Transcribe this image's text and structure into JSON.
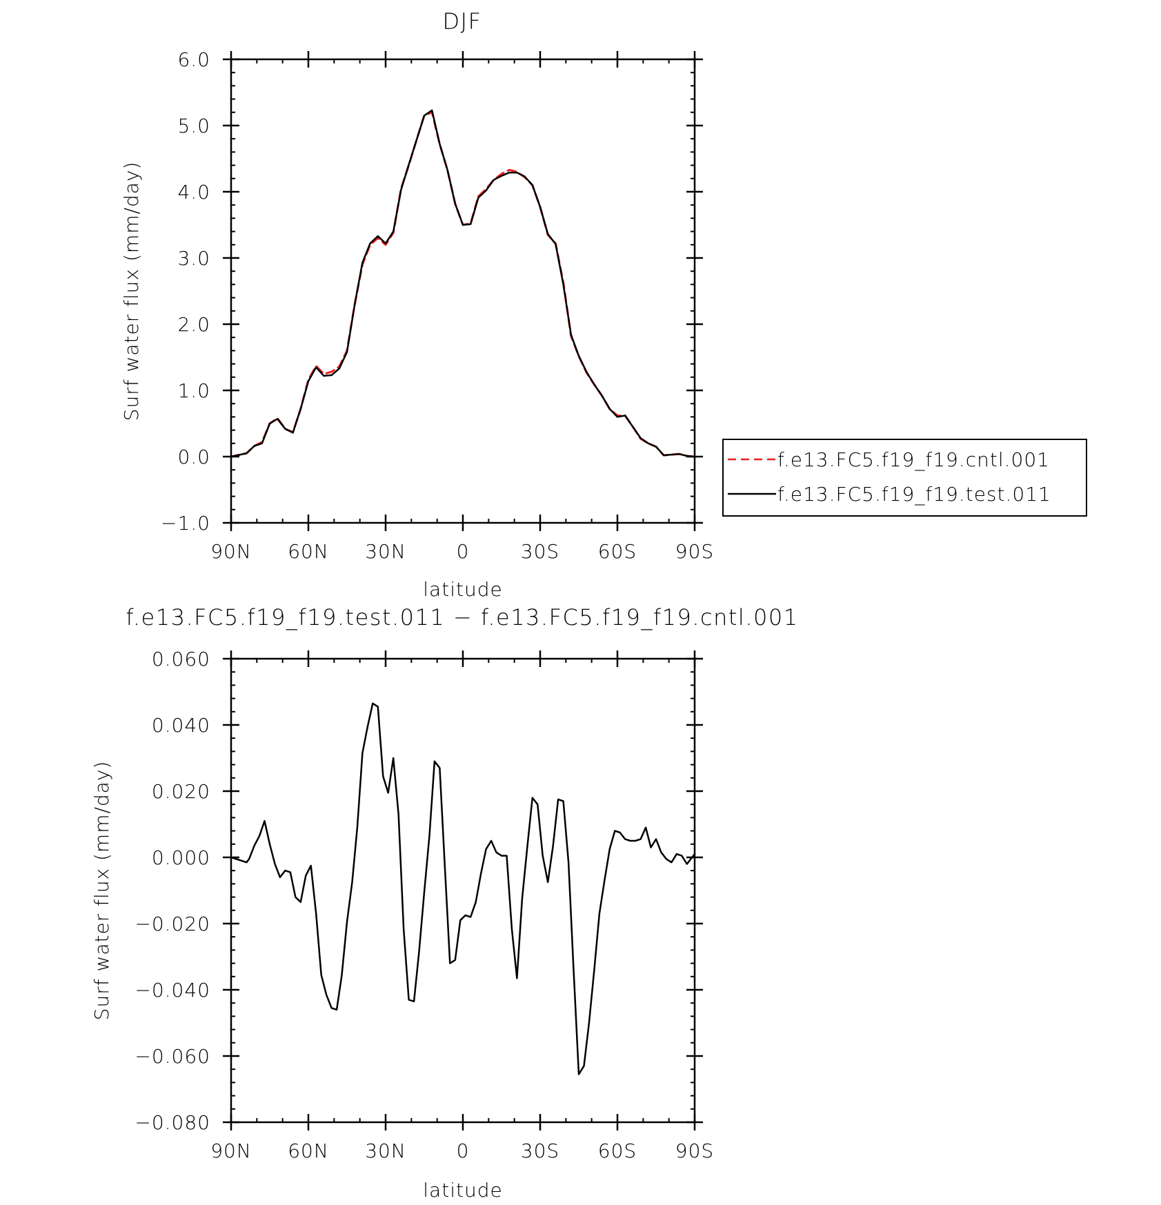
{
  "chart_data": [
    {
      "type": "line",
      "title": "DJF",
      "xlabel": "latitude",
      "ylabel": "Surf water flux (mm/day)",
      "xlim": [
        90,
        -90
      ],
      "ylim": [
        -1.0,
        6.0
      ],
      "xticks": [
        90,
        60,
        30,
        0,
        -30,
        -60,
        -90
      ],
      "xtick_labels": [
        "90N",
        "60N",
        "30N",
        "0",
        "30S",
        "60S",
        "90S"
      ],
      "yticks": [
        -1.0,
        0.0,
        1.0,
        2.0,
        3.0,
        4.0,
        5.0,
        6.0
      ],
      "ytick_labels": [
        "−1.0",
        "0.0",
        "1.0",
        "2.0",
        "3.0",
        "4.0",
        "5.0",
        "6.0"
      ],
      "grid": false,
      "legend": "right",
      "series": [
        {
          "name": "f.e13.FC5.f19_f19.cntl.001",
          "color": "#e8201f",
          "style": "dashed",
          "x": [
            90,
            84,
            81,
            78,
            75,
            72,
            69,
            66,
            63,
            60,
            57,
            54,
            51,
            48,
            45,
            42,
            39,
            36,
            33,
            30,
            27,
            24,
            21,
            18,
            15,
            12,
            9,
            6,
            3,
            0,
            -3,
            -6,
            -9,
            -12,
            -15,
            -18,
            -21,
            -24,
            -27,
            -30,
            -33,
            -36,
            -39,
            -42,
            -45,
            -48,
            -51,
            -54,
            -57,
            -60,
            -63,
            -66,
            -69,
            -72,
            -75,
            -78,
            -81,
            -84,
            -87,
            -90
          ],
          "y": [
            0.0,
            0.05,
            0.16,
            0.22,
            0.5,
            0.58,
            0.42,
            0.37,
            0.72,
            1.16,
            1.37,
            1.25,
            1.28,
            1.36,
            1.6,
            2.3,
            2.9,
            3.2,
            3.3,
            3.2,
            3.38,
            4.05,
            4.4,
            4.78,
            5.15,
            5.2,
            4.72,
            4.33,
            3.82,
            3.5,
            3.52,
            3.93,
            4.04,
            4.18,
            4.27,
            4.33,
            4.3,
            4.22,
            4.1,
            3.77,
            3.35,
            3.22,
            2.63,
            1.82,
            1.52,
            1.27,
            1.09,
            0.92,
            0.72,
            0.62,
            0.62,
            0.45,
            0.27,
            0.2,
            0.15,
            0.02,
            0.03,
            0.04,
            0.01,
            0.0
          ]
        },
        {
          "name": "f.e13.FC5.f19_f19.test.011",
          "color": "#000000",
          "style": "solid",
          "x": [
            90,
            84,
            81,
            78,
            75,
            72,
            69,
            66,
            63,
            60,
            57,
            54,
            51,
            48,
            45,
            42,
            39,
            36,
            33,
            30,
            27,
            24,
            21,
            18,
            15,
            12,
            9,
            6,
            3,
            0,
            -3,
            -6,
            -9,
            -12,
            -15,
            -18,
            -21,
            -24,
            -27,
            -30,
            -33,
            -36,
            -39,
            -42,
            -45,
            -48,
            -51,
            -54,
            -57,
            -60,
            -63,
            -66,
            -69,
            -72,
            -75,
            -78,
            -81,
            -84,
            -87,
            -90
          ],
          "y": [
            0.0,
            0.05,
            0.16,
            0.2,
            0.5,
            0.57,
            0.42,
            0.36,
            0.72,
            1.14,
            1.35,
            1.22,
            1.23,
            1.33,
            1.58,
            2.3,
            2.93,
            3.22,
            3.33,
            3.22,
            3.4,
            4.03,
            4.41,
            4.78,
            5.15,
            5.23,
            4.72,
            4.33,
            3.82,
            3.5,
            3.51,
            3.91,
            4.02,
            4.18,
            4.24,
            4.29,
            4.29,
            4.23,
            4.1,
            3.77,
            3.36,
            3.21,
            2.6,
            1.84,
            1.52,
            1.28,
            1.09,
            0.92,
            0.72,
            0.6,
            0.62,
            0.45,
            0.28,
            0.2,
            0.15,
            0.02,
            0.03,
            0.04,
            0.01,
            0.0
          ]
        }
      ]
    },
    {
      "type": "line",
      "title": "f.e13.FC5.f19_f19.test.011 − f.e13.FC5.f19_f19.cntl.001",
      "xlabel": "latitude",
      "ylabel": "Surf water flux (mm/day)",
      "xlim": [
        90,
        -90
      ],
      "ylim": [
        -0.08,
        0.06
      ],
      "xticks": [
        90,
        60,
        30,
        0,
        -30,
        -60,
        -90
      ],
      "xtick_labels": [
        "90N",
        "60N",
        "30N",
        "0",
        "30S",
        "60S",
        "90S"
      ],
      "yticks": [
        -0.08,
        -0.06,
        -0.04,
        -0.02,
        0.0,
        0.02,
        0.04,
        0.06
      ],
      "ytick_labels": [
        "−0.080",
        "−0.060",
        "−0.040",
        "−0.020",
        "0.000",
        "0.020",
        "0.040",
        "0.060"
      ],
      "grid": false,
      "series": [
        {
          "color": "#000000",
          "style": "solid",
          "x": [
            90,
            84,
            83,
            81,
            79,
            77,
            75,
            73,
            71,
            69,
            67,
            65,
            63,
            61,
            59,
            57,
            55,
            53,
            51,
            49,
            47,
            45,
            43,
            41,
            39,
            37,
            35,
            33,
            31,
            29,
            27,
            25,
            23,
            21,
            19,
            17,
            15,
            13,
            11,
            9,
            7,
            5,
            3,
            1,
            -1,
            -3,
            -5,
            -7,
            -9,
            -11,
            -13,
            -15,
            -17,
            -19,
            -21,
            -23,
            -25,
            -27,
            -29,
            -31,
            -33,
            -35,
            -37,
            -39,
            -41,
            -43,
            -45,
            -47,
            -49,
            -51,
            -53,
            -55,
            -57,
            -59,
            -61,
            -63,
            -65,
            -67,
            -69,
            -71,
            -73,
            -75,
            -77,
            -79,
            -81,
            -83,
            -85,
            -87,
            -90
          ],
          "y": [
            0.0,
            -0.0015,
            -0.0005,
            0.0035,
            0.0065,
            0.011,
            0.004,
            -0.002,
            -0.006,
            -0.004,
            -0.0045,
            -0.012,
            -0.0135,
            -0.0055,
            -0.0025,
            -0.017,
            -0.0355,
            -0.0415,
            -0.0455,
            -0.046,
            -0.0355,
            -0.0195,
            -0.0075,
            0.009,
            0.0315,
            0.0395,
            0.0465,
            0.0455,
            0.0245,
            0.0195,
            0.03,
            0.013,
            -0.0215,
            -0.043,
            -0.0435,
            -0.0285,
            -0.0105,
            0.0065,
            0.029,
            0.027,
            -0.003,
            -0.032,
            -0.031,
            -0.019,
            -0.0175,
            -0.018,
            -0.0135,
            -0.005,
            0.0025,
            0.005,
            0.0015,
            0.0005,
            0.0005,
            -0.0215,
            -0.0365,
            -0.0125,
            0.003,
            0.018,
            0.016,
            0.0005,
            -0.0075,
            0.0035,
            0.0175,
            0.017,
            -0.0015,
            -0.034,
            -0.0655,
            -0.063,
            -0.05,
            -0.034,
            -0.017,
            -0.007,
            0.0025,
            0.008,
            0.0075,
            0.0055,
            0.005,
            0.005,
            0.0055,
            0.009,
            0.003,
            0.0055,
            0.0015,
            -0.0005,
            -0.0015,
            0.001,
            0.0005,
            -0.002,
            0.001
          ]
        }
      ]
    }
  ]
}
